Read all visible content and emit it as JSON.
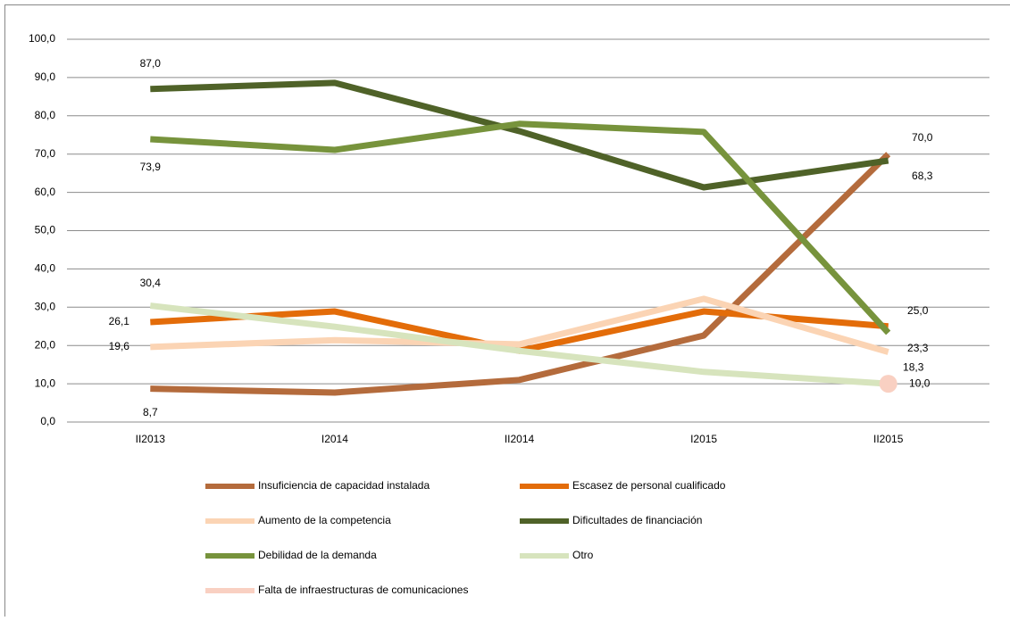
{
  "chart_data": {
    "type": "line",
    "categories": [
      "II2013",
      "I2014",
      "II2014",
      "I2015",
      "II2015"
    ],
    "ylim": [
      0,
      100
    ],
    "yticks": [
      {
        "value": 0,
        "label": "0,0"
      },
      {
        "value": 10,
        "label": "10,0"
      },
      {
        "value": 20,
        "label": "20,0"
      },
      {
        "value": 30,
        "label": "30,0"
      },
      {
        "value": 40,
        "label": "40,0"
      },
      {
        "value": 50,
        "label": "50,0"
      },
      {
        "value": 60,
        "label": "60,0"
      },
      {
        "value": 70,
        "label": "70,0"
      },
      {
        "value": 80,
        "label": "80,0"
      },
      {
        "value": 90,
        "label": "90,0"
      },
      {
        "value": 100,
        "label": "100,0"
      }
    ],
    "grid": true,
    "series": [
      {
        "name": "Insuficiencia de capacidad instalada",
        "color": "#b46b3c",
        "values": [
          8.7,
          7.7,
          11.0,
          22.6,
          70.0
        ],
        "value_labels": [
          "8,7",
          null,
          null,
          null,
          "70,0"
        ]
      },
      {
        "name": "Escasez de personal cualificado",
        "color": "#e36c09",
        "values": [
          26.1,
          28.9,
          18.6,
          28.9,
          25.0
        ],
        "value_labels": [
          "26,1",
          null,
          null,
          null,
          "25,0"
        ]
      },
      {
        "name": "Aumento de la competencia",
        "color": "#fbd4b4",
        "values": [
          19.6,
          21.4,
          20.3,
          32.2,
          18.3
        ],
        "value_labels": [
          "19,6",
          null,
          null,
          null,
          "18,3"
        ]
      },
      {
        "name": "Dificultades de financiación",
        "color": "#4f6228",
        "values": [
          87.0,
          88.6,
          76.0,
          61.3,
          68.3
        ],
        "value_labels": [
          "87,0",
          null,
          null,
          null,
          "68,3"
        ]
      },
      {
        "name": "Debilidad de la demanda",
        "color": "#77933c",
        "values": [
          73.9,
          71.1,
          77.9,
          75.8,
          23.3
        ],
        "value_labels": [
          "73,9",
          null,
          null,
          null,
          "23,3"
        ]
      },
      {
        "name": "Otro",
        "color": "#d7e4bd",
        "values": [
          30.4,
          24.9,
          18.6,
          13.1,
          10.0
        ],
        "value_labels": [
          "30,4",
          null,
          null,
          null,
          null
        ]
      },
      {
        "name": "Falta de infraestructuras de comunicaciones",
        "color": "#f9d0c2",
        "values": [
          null,
          null,
          null,
          null,
          10.0
        ],
        "value_labels": [
          null,
          null,
          null,
          null,
          "10,0"
        ]
      }
    ]
  }
}
